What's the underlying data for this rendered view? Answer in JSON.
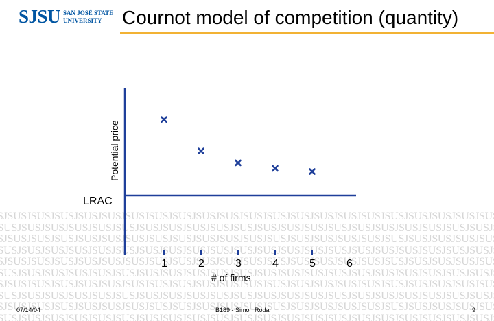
{
  "header": {
    "logo_mark": "SJSU",
    "logo_line1": "SAN JOSÉ STATE",
    "logo_line2": "UNIVERSITY",
    "title": "Cournot model of competition (quantity)"
  },
  "watermark_text": "SJSU",
  "colors": {
    "brand_blue": "#0055a2",
    "rule_gold": "#f2b234",
    "axis": "#1f3f9a",
    "marker": "#1f3f9a"
  },
  "chart_data": {
    "type": "scatter",
    "title": "",
    "xlabel": "# of firms",
    "ylabel": "Potential price",
    "x_ticks": [
      "1",
      "2",
      "3",
      "4",
      "5",
      "6"
    ],
    "x_range": [
      0,
      6
    ],
    "points": [
      {
        "x": 1,
        "y": 0.79
      },
      {
        "x": 2,
        "y": 0.39
      },
      {
        "x": 3,
        "y": 0.24
      },
      {
        "x": 4,
        "y": 0.17
      },
      {
        "x": 5,
        "y": 0.13
      }
    ],
    "y_range": [
      0,
      1
    ],
    "reference_line": {
      "label": "LRAC",
      "y": 0
    },
    "grid": false,
    "legend": "none"
  },
  "footer": {
    "date": "07/14/04",
    "center": "B189 - Simon Rodan",
    "page": "9"
  }
}
